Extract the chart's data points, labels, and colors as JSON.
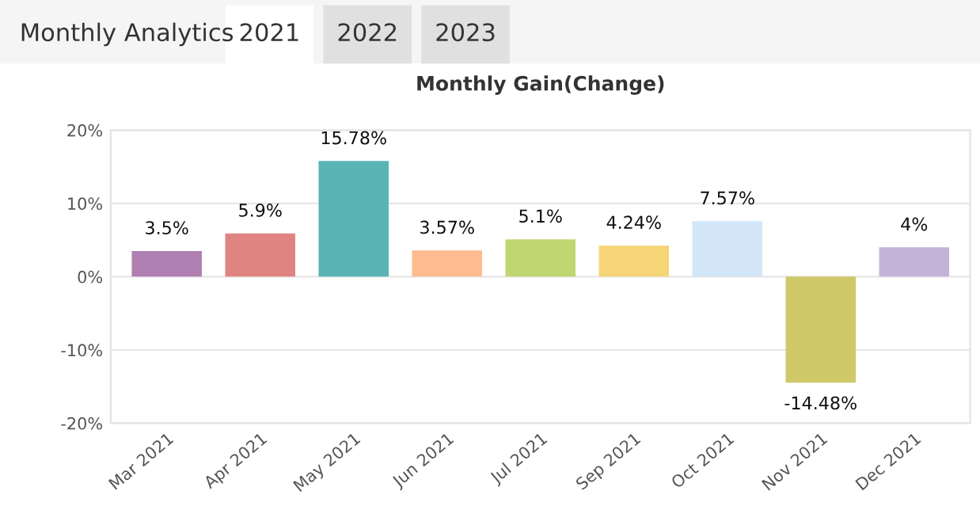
{
  "chart_data": {
    "type": "bar",
    "title": "Monthly Gain(Change)",
    "annotations": [
      "Monthly Analytics",
      "2021",
      "2022",
      "2023"
    ],
    "categories": [
      "Mar 2021",
      "Apr 2021",
      "May 2021",
      "Jun 2021",
      "Jul 2021",
      "Sep 2021",
      "Oct 2021",
      "Nov 2021",
      "Dec 2021"
    ],
    "values": [
      3.5,
      5.9,
      15.78,
      3.57,
      5.1,
      4.24,
      7.57,
      -14.48,
      4
    ],
    "value_labels": [
      "3.5%",
      "5.9%",
      "15.78%",
      "3.57%",
      "5.1%",
      "4.24%",
      "7.57%",
      "-14.48%",
      "4%"
    ],
    "colors": [
      "#b07fb2",
      "#e08482",
      "#5ab4b4",
      "#fdbb8f",
      "#bfd770",
      "#f5d576",
      "#d2e6f8",
      "#cfc96a",
      "#c4b3d8"
    ],
    "ylim": [
      -20,
      20
    ],
    "yticks": [
      {
        "value": -20,
        "label": "-20%"
      },
      {
        "value": -10,
        "label": "-10%"
      },
      {
        "value": 0,
        "label": "0%"
      },
      {
        "value": 10,
        "label": "10%"
      },
      {
        "value": 20,
        "label": "20%"
      }
    ],
    "grid": "y",
    "legend": false
  }
}
